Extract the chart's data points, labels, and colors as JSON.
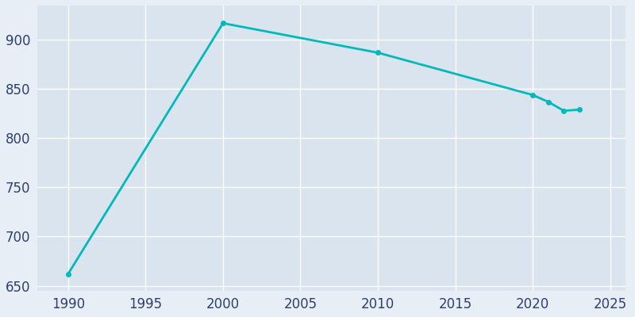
{
  "years": [
    1990,
    2000,
    2010,
    2020,
    2021,
    2022,
    2023
  ],
  "population": [
    662,
    917,
    887,
    844,
    837,
    828,
    829
  ],
  "line_color": "#00BABA",
  "marker_style": "o",
  "marker_size": 4,
  "line_width": 2,
  "plot_bg_color": "#d9e4ee",
  "fig_bg_color": "#e8eef5",
  "ylim": [
    645,
    935
  ],
  "xlim": [
    1988,
    2026
  ],
  "yticks": [
    650,
    700,
    750,
    800,
    850,
    900
  ],
  "xticks": [
    1990,
    1995,
    2000,
    2005,
    2010,
    2015,
    2020,
    2025
  ],
  "tick_color": "#2e3f6e",
  "grid_color": "#ffffff",
  "label_fontsize": 12
}
